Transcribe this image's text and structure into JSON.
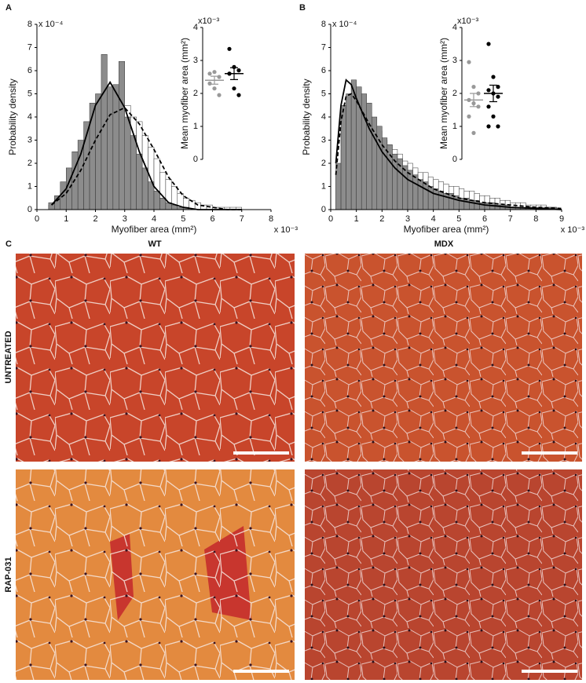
{
  "chart_data": [
    {
      "type": "histogram",
      "panel_label": "A",
      "xlabel": "Myofiber area (mm²)",
      "ylabel": "Probability density",
      "x_multiplier": "x 10⁻³",
      "y_multiplier": "x 10⁻⁴",
      "xlim": [
        0,
        8
      ],
      "xticks": [
        0,
        1,
        2,
        3,
        4,
        5,
        6,
        7,
        8
      ],
      "ylim": [
        0,
        8
      ],
      "yticks": [
        0,
        1,
        2,
        3,
        4,
        5,
        6,
        7,
        8
      ],
      "bins": [
        0.4,
        0.6,
        0.8,
        1.0,
        1.2,
        1.4,
        1.6,
        1.8,
        2.0,
        2.2,
        2.4,
        2.6,
        2.8,
        3.0,
        3.2,
        3.4,
        3.6,
        3.8,
        4.0,
        4.2,
        4.4,
        4.6,
        4.8,
        5.0,
        5.2,
        5.4,
        5.6,
        5.8,
        6.0,
        6.2,
        6.4,
        6.6,
        6.8,
        7.0
      ],
      "series": [
        {
          "color": "#ffffff",
          "values": [
            0.2,
            0.5,
            0.8,
            1.1,
            1.5,
            1.9,
            2.4,
            2.9,
            3.5,
            5.0,
            4.5,
            5.2,
            4.8,
            4.5,
            4.0,
            3.8,
            3.2,
            2.7,
            2.2,
            1.6,
            1.3,
            1.0,
            0.7,
            0.5,
            0.4,
            0.3,
            0.2,
            0.2,
            0.1,
            0.1,
            0.1,
            0.1,
            0.1
          ]
        },
        {
          "color": "#8c8c8c",
          "values": [
            0.3,
            0.6,
            1.2,
            1.8,
            2.5,
            3.0,
            3.8,
            4.6,
            5.0,
            6.7,
            5.3,
            5.4,
            6.4,
            4.0,
            3.2,
            2.4,
            1.8,
            1.2,
            0.8,
            0.5,
            0.3,
            0.2,
            0.1,
            0.1,
            0,
            0,
            0,
            0,
            0,
            0,
            0,
            0,
            0
          ]
        }
      ],
      "curves": [
        {
          "dashed": false,
          "x": [
            0.5,
            1,
            1.5,
            2,
            2.5,
            3,
            3.5,
            4,
            4.5,
            5,
            5.5,
            6,
            6.5,
            7
          ],
          "values": [
            0.2,
            0.9,
            2.4,
            4.5,
            5.5,
            4.4,
            2.5,
            1.0,
            0.3,
            0.1,
            0,
            0,
            0,
            0
          ]
        },
        {
          "dashed": true,
          "x": [
            0.5,
            1,
            1.5,
            2,
            2.5,
            3,
            3.5,
            4,
            4.5,
            5,
            5.5,
            6,
            6.5,
            7
          ],
          "values": [
            0.2,
            0.7,
            1.7,
            3.0,
            4.1,
            4.4,
            3.7,
            2.6,
            1.4,
            0.6,
            0.2,
            0.1,
            0,
            0
          ]
        }
      ]
    },
    {
      "type": "strip",
      "ylabel": "Mean myofiber area (mm²)",
      "y_multiplier": "x10⁻³",
      "ylim": [
        0,
        4
      ],
      "yticks": [
        0,
        1,
        2,
        3,
        4
      ],
      "groups": [
        {
          "color": "#999999",
          "values": [
            2.6,
            2.65,
            2.5,
            2.3,
            2.15,
            1.95
          ],
          "mean": 2.4,
          "sem": 0.12
        },
        {
          "color": "#000000",
          "values": [
            3.35,
            2.8,
            2.7,
            2.6,
            2.15,
            1.95,
            2.6
          ],
          "mean": 2.6,
          "sem": 0.18
        }
      ]
    },
    {
      "type": "histogram",
      "panel_label": "B",
      "xlabel": "Myofiber area (mm²)",
      "ylabel": "Probability density",
      "x_multiplier": "x 10⁻³",
      "y_multiplier": "x 10⁻⁴",
      "xlim": [
        0,
        9
      ],
      "xticks": [
        0,
        1,
        2,
        3,
        4,
        5,
        6,
        7,
        8,
        9
      ],
      "ylim": [
        0,
        8
      ],
      "yticks": [
        0,
        1,
        2,
        3,
        4,
        5,
        6,
        7,
        8
      ],
      "bins": [
        0.2,
        0.4,
        0.6,
        0.8,
        1.0,
        1.2,
        1.4,
        1.6,
        1.8,
        2.0,
        2.2,
        2.4,
        2.6,
        2.8,
        3.0,
        3.2,
        3.4,
        3.6,
        3.8,
        4.0,
        4.2,
        4.4,
        4.6,
        4.8,
        5.0,
        5.2,
        5.4,
        5.6,
        5.8,
        6.0,
        6.2,
        6.4,
        6.6,
        6.8,
        7.0,
        7.2,
        7.4,
        7.6,
        7.8,
        8.0,
        8.2,
        8.4,
        8.6,
        8.8
      ],
      "series": [
        {
          "color": "#ffffff",
          "values": [
            1.5,
            3.5,
            4.7,
            5.4,
            5.0,
            4.5,
            4.2,
            3.6,
            3.4,
            3.0,
            2.8,
            2.6,
            2.4,
            2.1,
            2.0,
            1.8,
            1.6,
            1.6,
            1.4,
            1.3,
            1.2,
            1.1,
            1.0,
            1.0,
            0.9,
            0.8,
            0.8,
            0.7,
            0.6,
            0.6,
            0.5,
            0.5,
            0.4,
            0.4,
            0.3,
            0.3,
            0.3,
            0.2,
            0.2,
            0.2,
            0.2,
            0.1,
            0.1
          ]
        },
        {
          "color": "#8c8c8c",
          "values": [
            2.0,
            4.5,
            5.0,
            5.6,
            5.3,
            5.0,
            4.6,
            4.0,
            3.6,
            3.1,
            2.8,
            2.4,
            2.2,
            1.9,
            1.7,
            1.5,
            1.3,
            1.2,
            1.0,
            0.9,
            0.8,
            0.7,
            0.7,
            0.6,
            0.5,
            0.5,
            0.4,
            0.4,
            0.3,
            0.3,
            0.3,
            0.2,
            0.2,
            0.2,
            0.1,
            0.1,
            0.1,
            0.1,
            0.1,
            0.1,
            0.1,
            0.1,
            0.1
          ]
        }
      ],
      "curves": [
        {
          "dashed": false,
          "x": [
            0.2,
            0.4,
            0.6,
            0.8,
            1,
            1.5,
            2,
            2.5,
            3,
            4,
            5,
            6,
            7,
            8,
            9
          ],
          "values": [
            2.0,
            4.5,
            5.6,
            5.4,
            4.8,
            3.5,
            2.5,
            1.8,
            1.3,
            0.7,
            0.4,
            0.2,
            0.1,
            0.05,
            0
          ]
        },
        {
          "dashed": true,
          "x": [
            0.2,
            0.4,
            0.6,
            0.8,
            1,
            1.5,
            2,
            2.5,
            3,
            4,
            5,
            6,
            7,
            8,
            9
          ],
          "values": [
            1.5,
            3.8,
            4.9,
            5.0,
            4.7,
            3.7,
            2.8,
            2.1,
            1.6,
            0.9,
            0.5,
            0.3,
            0.2,
            0.1,
            0.05
          ]
        }
      ]
    },
    {
      "type": "strip",
      "ylabel": "Mean myofiber area (mm²)",
      "y_multiplier": "x10⁻³",
      "ylim": [
        0,
        4
      ],
      "yticks": [
        0,
        1,
        2,
        3,
        4
      ],
      "groups": [
        {
          "color": "#999999",
          "values": [
            2.95,
            2.2,
            2.0,
            1.8,
            1.7,
            1.6,
            1.3,
            0.8
          ],
          "mean": 1.8,
          "sem": 0.2
        },
        {
          "color": "#000000",
          "values": [
            3.5,
            2.5,
            2.2,
            2.1,
            2.0,
            1.9,
            1.6,
            1.3,
            1.0,
            1.0
          ],
          "mean": 2.0,
          "sem": 0.25
        }
      ]
    }
  ],
  "panel_c": {
    "label": "C",
    "columns": [
      "WT",
      "MDX"
    ],
    "rows": [
      "UNTREATED",
      "RAP-031"
    ]
  }
}
